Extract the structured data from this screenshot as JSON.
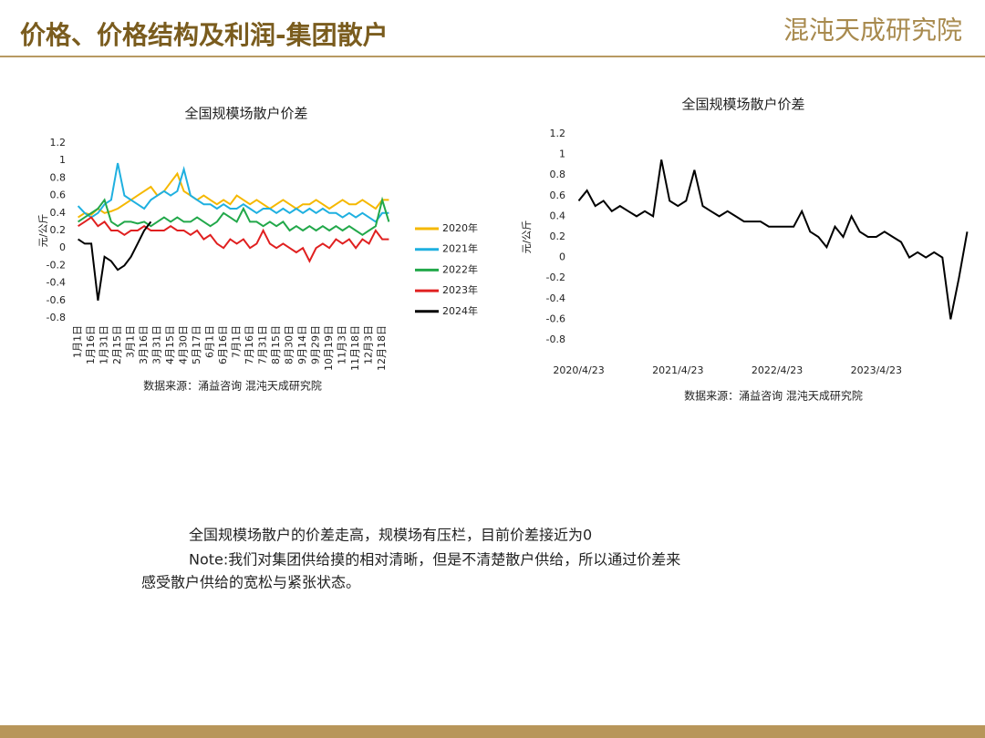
{
  "header": {
    "title": "价格、价格结构及利润-集团散户",
    "logo": "混沌天成研究院"
  },
  "notes": [
    "全国规模场散户的价差走高，规模场有压栏，目前价差接近为0",
    "Note:我们对集团供给摸的相对清晰，但是不清楚散户供给，所以通过价差来",
    "感受散户供给的宽松与紧张状态。"
  ],
  "chart_data": [
    {
      "type": "line",
      "title": "全国规模场散户价差",
      "y_label": "元/公斤",
      "source": "数据来源：涌益咨询 混沌天成研究院",
      "categories": [
        "1月1日",
        null,
        "1月16日",
        null,
        "1月31日",
        null,
        "2月15日",
        null,
        "3月1日",
        null,
        "3月16日",
        null,
        "3月31日",
        null,
        "4月15日",
        null,
        "4月30日",
        null,
        "5月17日",
        null,
        "6月1日",
        null,
        "6月16日",
        null,
        "7月1日",
        null,
        "7月16日",
        null,
        "7月31日",
        null,
        "8月15日",
        null,
        "8月30日",
        null,
        "9月14日",
        null,
        "9月29日",
        null,
        "10月19日",
        null,
        "11月3日",
        null,
        "11月18日",
        null,
        "12月3日",
        null,
        "12月18日",
        null
      ],
      "series": [
        {
          "name": "2020年",
          "color": "#f5b800",
          "values": [
            0.35,
            0.4,
            0.38,
            0.45,
            0.4,
            0.42,
            0.45,
            0.5,
            0.55,
            0.6,
            0.65,
            0.7,
            0.6,
            0.65,
            0.75,
            0.85,
            0.65,
            0.6,
            0.55,
            0.6,
            0.55,
            0.5,
            0.55,
            0.5,
            0.6,
            0.55,
            0.5,
            0.55,
            0.5,
            0.45,
            0.5,
            0.55,
            0.5,
            0.45,
            0.5,
            0.5,
            0.55,
            0.5,
            0.45,
            0.5,
            0.55,
            0.5,
            0.5,
            0.55,
            0.5,
            0.45,
            0.55,
            0.55
          ]
        },
        {
          "name": "2021年",
          "color": "#1fb0e0",
          "values": [
            0.48,
            0.4,
            0.35,
            0.4,
            0.5,
            0.55,
            0.97,
            0.6,
            0.55,
            0.5,
            0.45,
            0.55,
            0.6,
            0.65,
            0.6,
            0.65,
            0.9,
            0.6,
            0.55,
            0.5,
            0.5,
            0.45,
            0.5,
            0.45,
            0.45,
            0.5,
            0.45,
            0.4,
            0.45,
            0.45,
            0.4,
            0.45,
            0.4,
            0.45,
            0.4,
            0.45,
            0.4,
            0.45,
            0.4,
            0.4,
            0.35,
            0.4,
            0.35,
            0.4,
            0.35,
            0.3,
            0.4,
            0.4
          ]
        },
        {
          "name": "2022年",
          "color": "#22a84a",
          "values": [
            0.3,
            0.35,
            0.4,
            0.45,
            0.55,
            0.3,
            0.25,
            0.3,
            0.3,
            0.28,
            0.3,
            0.25,
            0.3,
            0.35,
            0.3,
            0.35,
            0.3,
            0.3,
            0.35,
            0.3,
            0.25,
            0.3,
            0.4,
            0.35,
            0.3,
            0.45,
            0.3,
            0.3,
            0.25,
            0.3,
            0.25,
            0.3,
            0.2,
            0.25,
            0.2,
            0.25,
            0.2,
            0.25,
            0.2,
            0.25,
            0.2,
            0.25,
            0.2,
            0.15,
            0.2,
            0.25,
            0.55,
            0.3
          ]
        },
        {
          "name": "2023年",
          "color": "#e02020",
          "values": [
            0.25,
            0.3,
            0.35,
            0.25,
            0.3,
            0.2,
            0.2,
            0.15,
            0.2,
            0.2,
            0.25,
            0.2,
            0.2,
            0.2,
            0.25,
            0.2,
            0.2,
            0.15,
            0.2,
            0.1,
            0.15,
            0.05,
            0.0,
            0.1,
            0.05,
            0.1,
            0.0,
            0.05,
            0.2,
            0.05,
            0.0,
            0.05,
            0.0,
            -0.05,
            0.0,
            -0.15,
            0.0,
            0.05,
            0.0,
            0.1,
            0.05,
            0.1,
            0.0,
            0.1,
            0.05,
            0.2,
            0.1,
            0.1
          ]
        },
        {
          "name": "2024年",
          "color": "#000000",
          "values": [
            0.1,
            0.05,
            0.05,
            -0.6,
            -0.1,
            -0.15,
            -0.25,
            -0.2,
            -0.1,
            0.05,
            0.2,
            0.3,
            null,
            null,
            null,
            null,
            null,
            null,
            null,
            null,
            null,
            null,
            null,
            null,
            null,
            null,
            null,
            null,
            null,
            null,
            null,
            null,
            null,
            null,
            null,
            null,
            null,
            null,
            null,
            null,
            null,
            null,
            null,
            null,
            null,
            null,
            null,
            null
          ]
        }
      ],
      "ylim": [
        -0.8,
        1.2
      ],
      "yticks": [
        -0.8,
        -0.6,
        -0.4,
        -0.2,
        0,
        0.2,
        0.4,
        0.6,
        0.8,
        1,
        1.2
      ],
      "grid": false,
      "legend": "right"
    },
    {
      "type": "line",
      "title": "全国规模场散户价差",
      "y_label": "元/公斤",
      "source": "数据来源：涌益咨询 混沌天成研究院",
      "categories": [
        "2020/4/23",
        null,
        null,
        null,
        null,
        null,
        null,
        null,
        null,
        null,
        null,
        null,
        "2021/4/23",
        null,
        null,
        null,
        null,
        null,
        null,
        null,
        null,
        null,
        null,
        null,
        "2022/4/23",
        null,
        null,
        null,
        null,
        null,
        null,
        null,
        null,
        null,
        null,
        null,
        "2023/4/23",
        null,
        null,
        null,
        null,
        null,
        null,
        null,
        null,
        null,
        null,
        null
      ],
      "series": [
        {
          "color": "#000000",
          "values": [
            0.55,
            0.65,
            0.5,
            0.55,
            0.45,
            0.5,
            0.45,
            0.4,
            0.45,
            0.4,
            0.95,
            0.55,
            0.5,
            0.55,
            0.85,
            0.5,
            0.45,
            0.4,
            0.45,
            0.4,
            0.35,
            0.35,
            0.35,
            0.3,
            0.3,
            0.3,
            0.3,
            0.45,
            0.25,
            0.2,
            0.1,
            0.3,
            0.2,
            0.4,
            0.25,
            0.2,
            0.2,
            0.25,
            0.2,
            0.15,
            0.0,
            0.05,
            0.0,
            0.05,
            0.0,
            -0.6,
            -0.2,
            0.25
          ]
        }
      ],
      "ylim": [
        -0.8,
        1.2
      ],
      "yticks": [
        -0.8,
        -0.6,
        -0.4,
        -0.2,
        0,
        0.2,
        0.4,
        0.6,
        0.8,
        1,
        1.2
      ],
      "grid": false
    }
  ]
}
